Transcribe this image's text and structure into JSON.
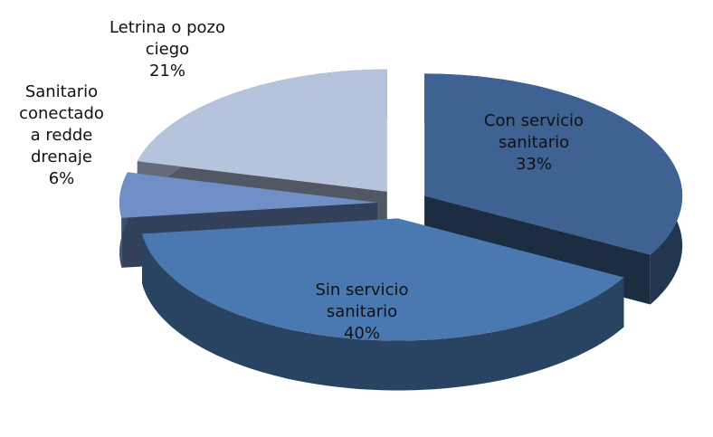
{
  "chart_data": {
    "type": "pie",
    "categories": [
      "Con servicio sanitario",
      "Sin servicio sanitario",
      "Sanitario conectado a redde drenaje",
      "Letrina o pozo ciego"
    ],
    "values": [
      33,
      40,
      6,
      21
    ],
    "value_labels": [
      "33%",
      "40%",
      "6%",
      "21%"
    ],
    "colors": [
      "#3e6291",
      "#4a79b2",
      "#6f8fc6",
      "#b5c3dd"
    ]
  }
}
